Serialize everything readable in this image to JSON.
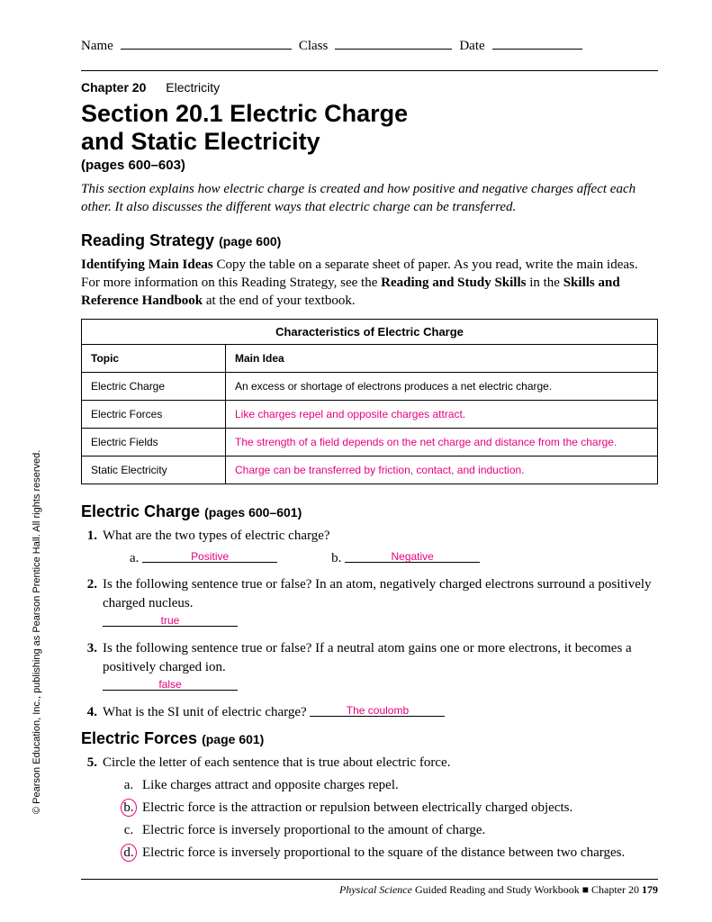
{
  "header": {
    "name_label": "Name",
    "class_label": "Class",
    "date_label": "Date"
  },
  "chapter": {
    "number": "Chapter 20",
    "topic": "Electricity"
  },
  "section": {
    "title_line1": "Section 20.1 Electric Charge",
    "title_line2": "and Static Electricity",
    "pages": "(pages 600–603)",
    "intro": "This section explains how electric charge is created and how positive and negative charges affect each other. It also discusses the different ways that electric charge can be transferred."
  },
  "reading_strategy": {
    "heading": "Reading Strategy",
    "heading_sub": "(page 600)",
    "lead": "Identifying Main Ideas",
    "text_part1": "  Copy the table on a separate sheet of paper. As you read, write the main ideas. For more information on this Reading Strategy, see the ",
    "bold1": "Reading and Study Skills",
    "text_part2": " in the ",
    "bold2": "Skills and Reference Handbook",
    "text_part3": " at the end of your textbook."
  },
  "table": {
    "caption": "Characteristics of Electric Charge",
    "col1": "Topic",
    "col2": "Main Idea",
    "rows": [
      {
        "topic": "Electric Charge",
        "idea": "An excess or shortage of electrons produces a net electric charge.",
        "answer": false
      },
      {
        "topic": "Electric Forces",
        "idea": "Like charges repel and opposite charges attract.",
        "answer": true
      },
      {
        "topic": "Electric Fields",
        "idea": "The strength of a field depends on the net charge and distance from the charge.",
        "answer": true
      },
      {
        "topic": "Static Electricity",
        "idea": "Charge can be transferred by friction, contact, and induction.",
        "answer": true
      }
    ]
  },
  "electric_charge": {
    "heading": "Electric Charge",
    "heading_sub": "(pages 600–601)",
    "q1": {
      "num": "1.",
      "text": "What are the two types of electric charge?",
      "a_label": "a.",
      "a_ans": "Positive",
      "b_label": "b.",
      "b_ans": "Negative"
    },
    "q2": {
      "num": "2.",
      "text": "Is the following sentence true or false? In an atom, negatively charged electrons surround a positively charged nucleus.",
      "ans": "true"
    },
    "q3": {
      "num": "3.",
      "text": "Is the following sentence true or false? If a neutral atom gains one or more electrons, it becomes a positively charged ion.",
      "ans": "false"
    },
    "q4": {
      "num": "4.",
      "text": "What is the SI unit of electric charge? ",
      "ans": "The coulomb"
    }
  },
  "electric_forces": {
    "heading": "Electric Forces",
    "heading_sub": "(page 601)",
    "q5": {
      "num": "5.",
      "text": "Circle the letter of each sentence that is true about electric force.",
      "choices": [
        {
          "letter": "a.",
          "text": "Like charges attract and opposite charges repel.",
          "circled": false
        },
        {
          "letter": "b.",
          "text": "Electric force is the attraction or repulsion between electrically charged objects.",
          "circled": true
        },
        {
          "letter": "c.",
          "text": "Electric force is inversely proportional to the amount of charge.",
          "circled": false
        },
        {
          "letter": "d.",
          "text": "Electric force is inversely proportional to the square of the distance between two charges.",
          "circled": true
        }
      ]
    }
  },
  "copyright": "© Pearson Education, Inc., publishing as Pearson Prentice Hall. All rights reserved.",
  "footer": {
    "italic": "Physical Science",
    "mid": " Guided Reading and Study Workbook   ■   Chapter 20   ",
    "page": "179"
  }
}
